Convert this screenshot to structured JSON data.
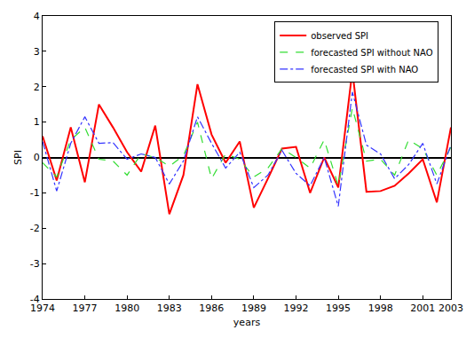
{
  "chart_data": {
    "type": "line",
    "x_label": "years",
    "y_label": "SPI",
    "x": [
      1974,
      1975,
      1976,
      1977,
      1978,
      1979,
      1980,
      1981,
      1982,
      1983,
      1984,
      1985,
      1986,
      1987,
      1988,
      1989,
      1990,
      1991,
      1992,
      1993,
      1994,
      1995,
      1996,
      1997,
      1998,
      1999,
      2000,
      2001,
      2002,
      2003
    ],
    "series": [
      {
        "name": "observed SPI",
        "color": "#ff0000",
        "line_style": "solid",
        "values": [
          0.6,
          -0.65,
          0.85,
          -0.7,
          1.5,
          0.85,
          0.15,
          -0.4,
          0.9,
          -1.6,
          -0.5,
          2.07,
          0.65,
          -0.15,
          0.45,
          -1.42,
          -0.6,
          0.25,
          0.3,
          -1.0,
          0.0,
          -0.85,
          2.45,
          -0.97,
          -0.95,
          -0.8,
          -0.45,
          -0.05,
          -1.27,
          0.85
        ]
      },
      {
        "name": "forecasted SPI without NAO",
        "color": "#33dd33",
        "line_style": "dash",
        "values": [
          -0.15,
          -0.55,
          0.5,
          0.85,
          -0.05,
          -0.1,
          -0.5,
          0.1,
          0.0,
          -0.25,
          0.05,
          1.0,
          -0.6,
          0.1,
          -0.05,
          -0.55,
          -0.3,
          0.25,
          0.0,
          -0.3,
          0.5,
          -0.8,
          1.4,
          -0.1,
          -0.05,
          -0.5,
          0.5,
          0.25,
          -0.5,
          0.3
        ]
      },
      {
        "name": "forecasted SPI with NAO",
        "color": "#3333ff",
        "line_style": "dashdot",
        "values": [
          0.45,
          -0.95,
          0.4,
          1.15,
          0.4,
          0.42,
          -0.05,
          0.1,
          0.0,
          -0.75,
          -0.1,
          1.15,
          0.4,
          -0.3,
          0.15,
          -0.85,
          -0.5,
          0.2,
          -0.45,
          -0.8,
          0.0,
          -1.38,
          1.85,
          0.35,
          0.1,
          -0.6,
          -0.2,
          0.4,
          -0.75,
          0.35
        ]
      }
    ],
    "xlim": [
      1974,
      2003
    ],
    "xticks": [
      1974,
      1977,
      1980,
      1983,
      1986,
      1989,
      1992,
      1995,
      1998,
      2001,
      2003
    ],
    "ylim": [
      -4,
      4
    ],
    "yticks": [
      -4,
      -3,
      -2,
      -1,
      0,
      1,
      2,
      3,
      4
    ],
    "grid": false,
    "legend": "upper right"
  }
}
